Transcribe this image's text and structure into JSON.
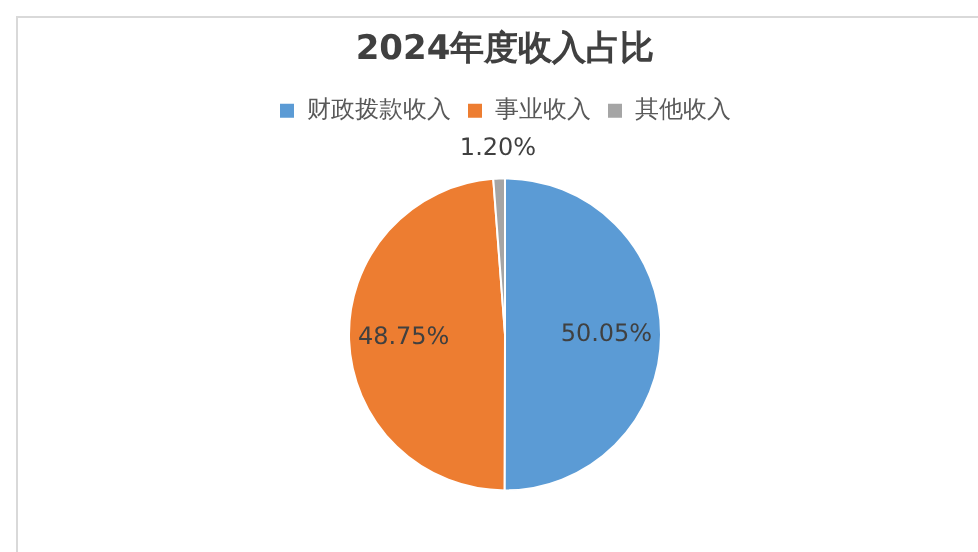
{
  "chart_data": {
    "type": "pie",
    "title": "2024年度收入占比",
    "categories": [
      "财政拨款收入",
      "事业收入",
      "其他收入"
    ],
    "values": [
      50.05,
      48.75,
      1.2
    ],
    "colors": [
      "#5b9bd5",
      "#ed7d31",
      "#a5a5a5"
    ],
    "value_labels": [
      "50.05%",
      "48.75%",
      "1.20%"
    ],
    "legend": "top"
  }
}
